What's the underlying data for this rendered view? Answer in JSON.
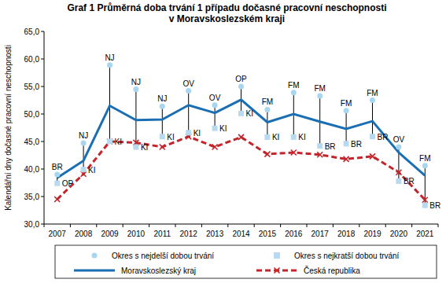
{
  "chart_data": {
    "type": "line",
    "title": [
      "Graf 1 Průměrná doba trvání 1 případu dočasné pracovní neschopnosti",
      "v Moravskoslezském kraji"
    ],
    "y_label": "Kalendářní dny dočasné pracovní neschopnosti",
    "categories": [
      "2007",
      "2008",
      "2009",
      "2010",
      "2011",
      "2012",
      "2013",
      "2014",
      "2015",
      "2016",
      "2017",
      "2018",
      "2019",
      "2020",
      "2021"
    ],
    "ylim": [
      30,
      65
    ],
    "yticks": [
      {
        "value": 30,
        "label": "30,0"
      },
      {
        "value": 35,
        "label": "35,0"
      },
      {
        "value": 40,
        "label": "40,0"
      },
      {
        "value": 45,
        "label": "45,0"
      },
      {
        "value": 50,
        "label": "50,0"
      },
      {
        "value": 55,
        "label": "55,0"
      },
      {
        "value": 60,
        "label": "60,0"
      },
      {
        "value": 65,
        "label": "65,0"
      }
    ],
    "grid": false,
    "legend": "bottom",
    "series": [
      {
        "name": "Okres s nejdelší dobou trvání",
        "type": "scatter",
        "marker": "circle",
        "color": "#a9d6ef",
        "values": [
          39.0,
          44.7,
          58.9,
          54.5,
          51.4,
          54.2,
          51.6,
          55.0,
          50.8,
          53.9,
          53.3,
          50.6,
          52.5,
          44.0,
          40.6
        ],
        "labels": [
          "BR",
          "NJ",
          "NJ",
          "NJ",
          "NJ",
          "OV",
          "OV",
          "OP",
          "FM",
          "FM",
          "FM",
          "FM",
          "FM",
          "OV",
          "FM"
        ]
      },
      {
        "name": "Okres s nejkratší dobou trvání",
        "type": "scatter",
        "marker": "square",
        "color": "#b8daf1",
        "values": [
          37.4,
          39.9,
          45.0,
          44.0,
          45.9,
          46.6,
          47.4,
          50.1,
          45.8,
          45.8,
          44.2,
          44.6,
          45.9,
          37.8,
          33.4
        ],
        "labels": [
          "OP",
          "KI",
          "KI",
          "KI",
          "KI",
          "KI",
          "KI",
          "KI",
          "KI",
          "KI",
          "BR",
          "BR",
          "BR",
          "BR",
          "BR"
        ]
      },
      {
        "name": "Moravskoslezský kraj",
        "type": "line",
        "line_style": "solid",
        "color": "#1a6fb4",
        "values": [
          38.4,
          41.5,
          51.5,
          48.9,
          49.0,
          51.6,
          50.2,
          52.6,
          48.5,
          50.0,
          48.6,
          47.3,
          48.7,
          43.0,
          38.8
        ]
      },
      {
        "name": "Česká republika",
        "type": "line",
        "line_style": "dashed",
        "marker": "x",
        "color": "#c3252b",
        "values": [
          34.5,
          39.1,
          45.0,
          44.8,
          44.0,
          45.9,
          44.0,
          45.8,
          42.7,
          43.0,
          42.6,
          41.8,
          42.3,
          39.4,
          34.4
        ]
      }
    ]
  }
}
